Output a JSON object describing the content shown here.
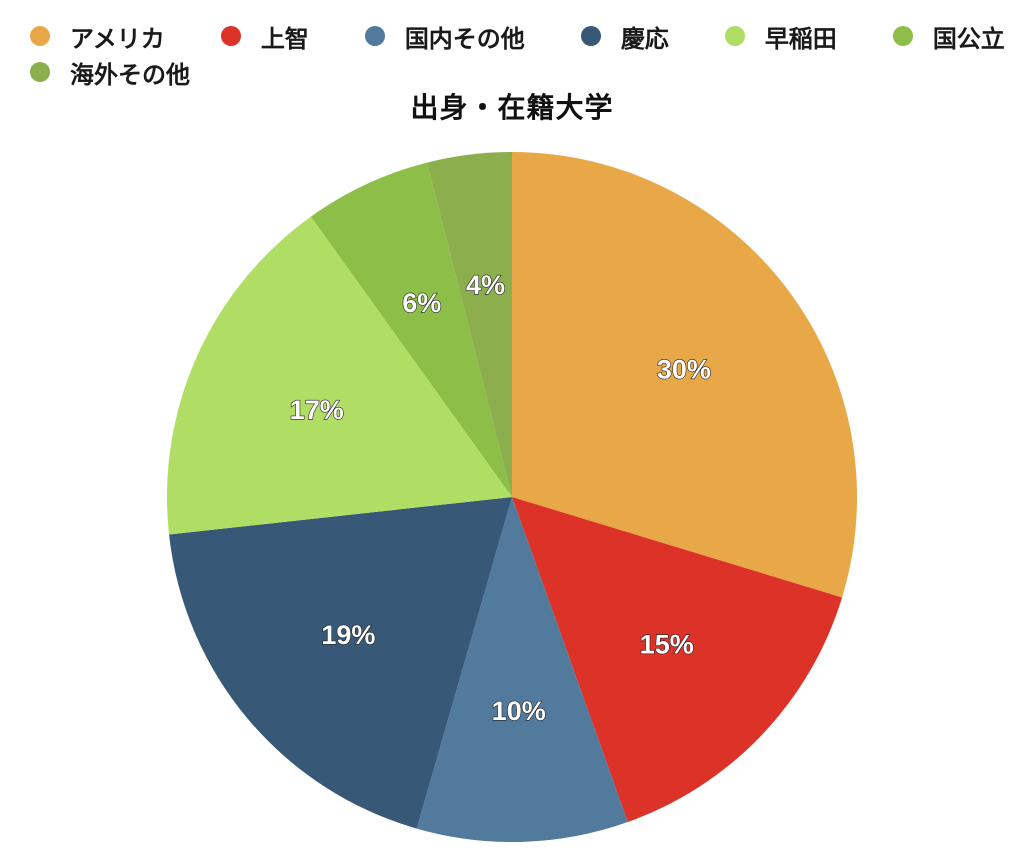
{
  "chart_data": {
    "type": "pie",
    "title": "出身・在籍大学",
    "legend_position": "top",
    "categories": [
      "アメリカ",
      "上智",
      "国内その他",
      "慶応",
      "早稲田",
      "国公立",
      "海外その他"
    ],
    "values": [
      30,
      15,
      10,
      19,
      17,
      6,
      4
    ],
    "labels": [
      "30%",
      "15%",
      "10%",
      "19%",
      "17%",
      "6%",
      "4%"
    ],
    "colors": [
      "#E8A848",
      "#DC3228",
      "#527A9C",
      "#375876",
      "#B0DE64",
      "#8CBE48",
      "#8CAE4C"
    ]
  }
}
